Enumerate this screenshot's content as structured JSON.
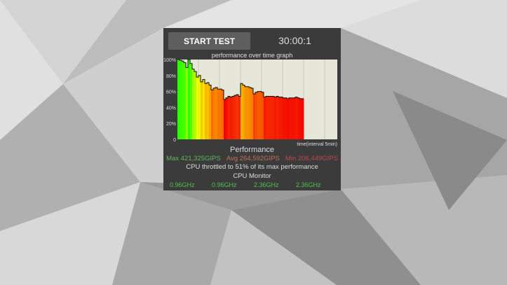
{
  "panel": {
    "start_label": "START TEST",
    "timer": "30:00:1"
  },
  "graph": {
    "title": "performance over time graph",
    "xlabel": "time(interval 5min)"
  },
  "chart_data": {
    "type": "bar",
    "title": "performance over time graph",
    "xlabel": "time(interval 5min)",
    "ylabel": "",
    "ylim": [
      0,
      100
    ],
    "yticks": [
      "0",
      "20%",
      "40%",
      "60%",
      "80%",
      "100%"
    ],
    "grid": true,
    "values": [
      100,
      99,
      98,
      96,
      90,
      100,
      95,
      88,
      85,
      78,
      80,
      72,
      75,
      70,
      71,
      68,
      62,
      64,
      65,
      63,
      63,
      62,
      50,
      52,
      54,
      53,
      54,
      55,
      56,
      54,
      70,
      68,
      66,
      66,
      65,
      64,
      57,
      59,
      60,
      60,
      59,
      53,
      54,
      54,
      54,
      54,
      53,
      54,
      53,
      53,
      52,
      52,
      51,
      52,
      52,
      52,
      53,
      52,
      51,
      51
    ]
  },
  "performance": {
    "title": "Performance",
    "max": "Max 421,325GIPS",
    "avg": "Avg 264,592GIPS",
    "min": "Min 206,449GIPS",
    "throttle": "CPU throttled to 51% of its max performance"
  },
  "cpu_monitor": {
    "title": "CPU Monitor",
    "freqs": [
      "0.96GHz",
      "0.96GHz",
      "2.36GHz",
      "2.36GHz"
    ]
  },
  "colors": {
    "max": "#5cb85c",
    "avg": "#c0705a",
    "min": "#c04848",
    "plot_bg": "#e6e7d8"
  }
}
